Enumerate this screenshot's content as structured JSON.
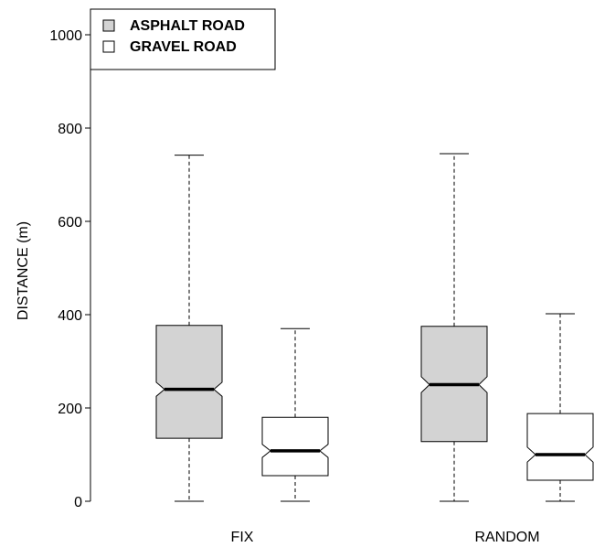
{
  "chart_data": {
    "type": "boxplot",
    "title": "",
    "xlabel": "",
    "ylabel": "DISTANCE (m)",
    "ylim": [
      0,
      1000
    ],
    "yticks": [
      0,
      200,
      400,
      600,
      800,
      1000
    ],
    "grid": false,
    "legend_position": "top-left",
    "categories": [
      "FIX",
      "RANDOM"
    ],
    "series": [
      {
        "name": "ASPHALT ROAD",
        "color": "#d3d3d3",
        "boxes": [
          {
            "whisker_low": 0,
            "q1": 135,
            "notch_low": 225,
            "median": 240,
            "notch_high": 255,
            "q3": 377,
            "whisker_high": 742
          },
          {
            "whisker_low": 0,
            "q1": 128,
            "notch_low": 233,
            "median": 250,
            "notch_high": 267,
            "q3": 375,
            "whisker_high": 745
          }
        ]
      },
      {
        "name": "GRAVEL ROAD",
        "color": "#ffffff",
        "boxes": [
          {
            "whisker_low": 0,
            "q1": 55,
            "notch_low": 94,
            "median": 108,
            "notch_high": 122,
            "q3": 180,
            "whisker_high": 370
          },
          {
            "whisker_low": 0,
            "q1": 45,
            "notch_low": 84,
            "median": 100,
            "notch_high": 116,
            "q3": 188,
            "whisker_high": 402
          }
        ]
      }
    ]
  }
}
